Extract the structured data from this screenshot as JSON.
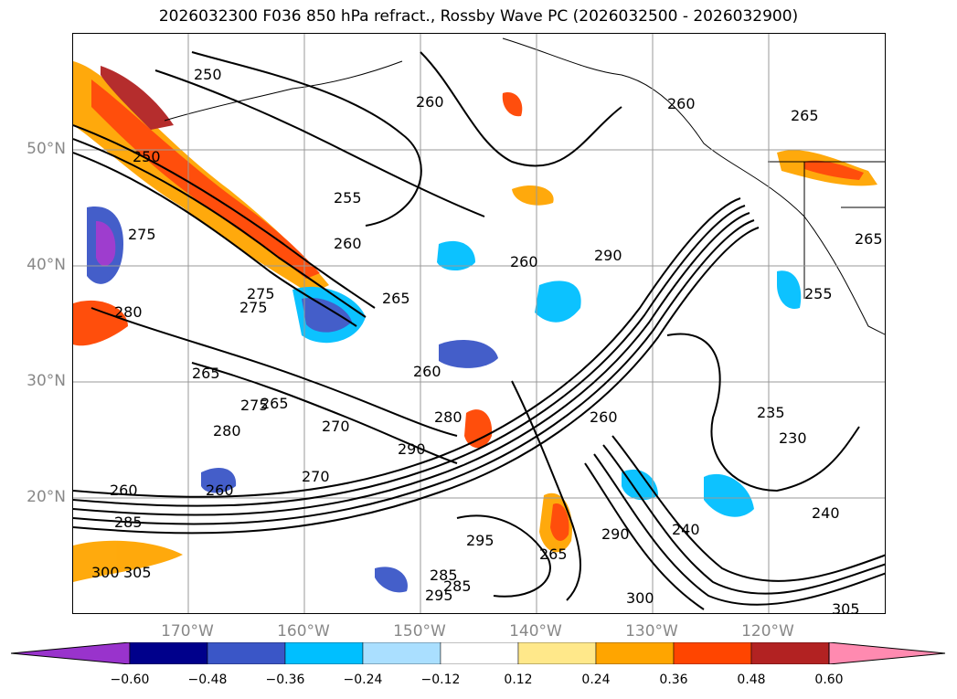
{
  "title": "2026032300 F036 850 hPa refract., Rossby Wave PC (2026032500 - 2026032900)",
  "lat_labels": [
    "50°N",
    "40°N",
    "30°N",
    "20°N"
  ],
  "lon_labels": [
    "170°W",
    "160°W",
    "150°W",
    "140°W",
    "130°W",
    "120°W"
  ],
  "contour_labels": [
    "250",
    "260",
    "265",
    "260",
    "250",
    "255",
    "260",
    "275",
    "265",
    "260",
    "260",
    "270",
    "280",
    "275",
    "265",
    "260",
    "280",
    "290",
    "275",
    "280",
    "270",
    "290",
    "260",
    "240",
    "235",
    "230",
    "265",
    "255",
    "285",
    "285",
    "295",
    "305",
    "265",
    "240",
    "300",
    "305",
    "300",
    "290",
    "295",
    "285",
    "265",
    "260",
    "275"
  ],
  "colorbar": {
    "ticks": [
      "−0.60",
      "−0.48",
      "−0.36",
      "−0.24",
      "−0.12",
      "0.12",
      "0.24",
      "0.36",
      "0.48",
      "0.60"
    ],
    "colors": [
      "#9933cc",
      "#00008b",
      "#3a56c7",
      "#00bfff",
      "#aadfff",
      "#ffffff",
      "#ffe88a",
      "#ffa500",
      "#ff4500",
      "#b22222",
      "#ff8ab0"
    ]
  }
}
